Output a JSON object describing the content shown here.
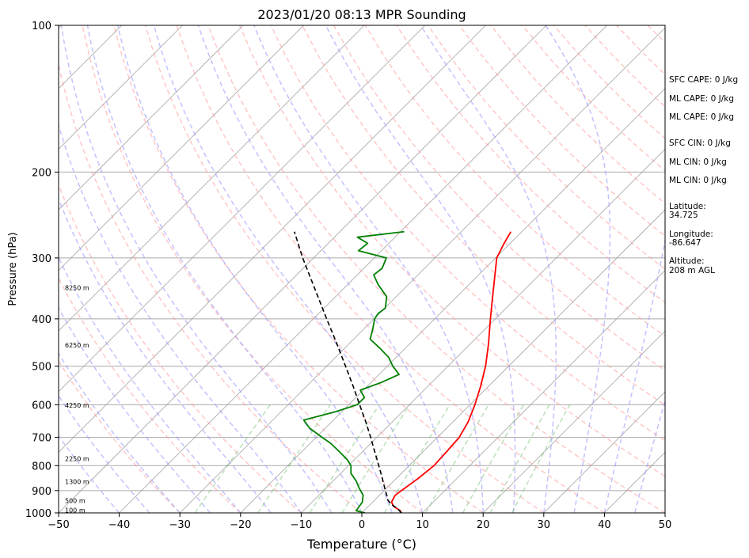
{
  "chart_data": {
    "type": "skew-t",
    "title": "2023/01/20 08:13 MPR Sounding",
    "xlabel": "Temperature (°C)",
    "ylabel": "Pressure (hPa)",
    "xlim": [
      -50,
      50
    ],
    "ylim": [
      1000,
      100
    ],
    "y_scale": "log",
    "grid": true,
    "x_ticks": [
      -50,
      -40,
      -30,
      -20,
      -10,
      0,
      10,
      20,
      30,
      40,
      50
    ],
    "y_ticks": [
      1000,
      900,
      800,
      700,
      600,
      500,
      400,
      300,
      200,
      100
    ],
    "series": [
      {
        "color": "#ff0000",
        "points": [
          {
            "p": 1000,
            "t": 6.5
          },
          {
            "p": 990,
            "t": 6.0
          },
          {
            "p": 970,
            "t": 4.2
          },
          {
            "p": 950,
            "t": 3.1
          },
          {
            "p": 920,
            "t": 2.6
          },
          {
            "p": 890,
            "t": 3.0
          },
          {
            "p": 850,
            "t": 3.6
          },
          {
            "p": 800,
            "t": 4.1
          },
          {
            "p": 750,
            "t": 3.9
          },
          {
            "p": 700,
            "t": 3.6
          },
          {
            "p": 650,
            "t": 2.5
          },
          {
            "p": 600,
            "t": 0.8
          },
          {
            "p": 550,
            "t": -1.3
          },
          {
            "p": 500,
            "t": -3.8
          },
          {
            "p": 450,
            "t": -7.0
          },
          {
            "p": 400,
            "t": -10.8
          },
          {
            "p": 350,
            "t": -15.0
          },
          {
            "p": 300,
            "t": -19.8
          },
          {
            "p": 280,
            "t": -21.0
          },
          {
            "p": 265,
            "t": -21.8
          }
        ]
      },
      {
        "color": "#008000",
        "points": [
          {
            "p": 1000,
            "t": 0.5
          },
          {
            "p": 990,
            "t": -1.3
          },
          {
            "p": 980,
            "t": -1.4
          },
          {
            "p": 950,
            "t": -1.7
          },
          {
            "p": 920,
            "t": -2.7
          },
          {
            "p": 890,
            "t": -4.5
          },
          {
            "p": 860,
            "t": -6.2
          },
          {
            "p": 830,
            "t": -8.3
          },
          {
            "p": 800,
            "t": -9.6
          },
          {
            "p": 780,
            "t": -11.0
          },
          {
            "p": 750,
            "t": -13.7
          },
          {
            "p": 720,
            "t": -16.6
          },
          {
            "p": 700,
            "t": -19.0
          },
          {
            "p": 670,
            "t": -22.6
          },
          {
            "p": 645,
            "t": -24.9
          },
          {
            "p": 620,
            "t": -21.0
          },
          {
            "p": 600,
            "t": -18.6
          },
          {
            "p": 580,
            "t": -18.6
          },
          {
            "p": 560,
            "t": -20.5
          },
          {
            "p": 540,
            "t": -18.3
          },
          {
            "p": 520,
            "t": -16.7
          },
          {
            "p": 500,
            "t": -19.1
          },
          {
            "p": 480,
            "t": -21.2
          },
          {
            "p": 460,
            "t": -24.1
          },
          {
            "p": 440,
            "t": -27.3
          },
          {
            "p": 420,
            "t": -28.5
          },
          {
            "p": 400,
            "t": -29.9
          },
          {
            "p": 390,
            "t": -30.2
          },
          {
            "p": 380,
            "t": -29.9
          },
          {
            "p": 360,
            "t": -31.6
          },
          {
            "p": 340,
            "t": -35.0
          },
          {
            "p": 325,
            "t": -37.3
          },
          {
            "p": 315,
            "t": -37.0
          },
          {
            "p": 300,
            "t": -38.0
          },
          {
            "p": 290,
            "t": -43.8
          },
          {
            "p": 280,
            "t": -43.5
          },
          {
            "p": 272,
            "t": -46.2
          },
          {
            "p": 265,
            "t": -39.4
          }
        ]
      },
      {
        "color": "#000000",
        "style": "dashed",
        "points": [
          {
            "p": 1000,
            "t": 6.5
          },
          {
            "p": 980,
            "t": 5.2
          },
          {
            "p": 960,
            "t": 3.4
          },
          {
            "p": 940,
            "t": 2.1
          },
          {
            "p": 920,
            "t": 1.2
          },
          {
            "p": 900,
            "t": 0.2
          },
          {
            "p": 850,
            "t": -2.3
          },
          {
            "p": 800,
            "t": -5.0
          },
          {
            "p": 750,
            "t": -7.9
          },
          {
            "p": 700,
            "t": -11.0
          },
          {
            "p": 650,
            "t": -14.4
          },
          {
            "p": 600,
            "t": -18.2
          },
          {
            "p": 550,
            "t": -22.3
          },
          {
            "p": 500,
            "t": -26.9
          },
          {
            "p": 450,
            "t": -32.0
          },
          {
            "p": 400,
            "t": -37.8
          },
          {
            "p": 350,
            "t": -44.3
          },
          {
            "p": 300,
            "t": -51.8
          },
          {
            "p": 265,
            "t": -57.5
          }
        ]
      }
    ],
    "height_labels": [
      {
        "text": "100 m",
        "p": 987
      },
      {
        "text": "500 m",
        "p": 944
      },
      {
        "text": "1300 m",
        "p": 863
      },
      {
        "text": "2250 m",
        "p": 774
      },
      {
        "text": "4250 m",
        "p": 602
      },
      {
        "text": "6250 m",
        "p": 453
      },
      {
        "text": "8250 m",
        "p": 345
      }
    ],
    "annotations": [
      "SFC CAPE: 0 J/kg",
      "ML CAPE: 0 J/kg",
      "ML CAPE: 0 J/kg",
      "SFC CIN: 0 J/kg",
      "ML CIN: 0 J/kg",
      "ML CIN: 0 J/kg",
      "Latitude:",
      "34.725",
      "Longitude:",
      "-86.647",
      "Altitude:",
      "208 m AGL"
    ],
    "colors": {
      "temperature": "#ff0000",
      "dewpoint": "#008000",
      "parcel": "#000000",
      "dry_adiabats": "#ff9999",
      "moist_adiabats": "#9999ff",
      "mixing_ratio": "#66bb66",
      "isotherms": "#999999"
    }
  }
}
